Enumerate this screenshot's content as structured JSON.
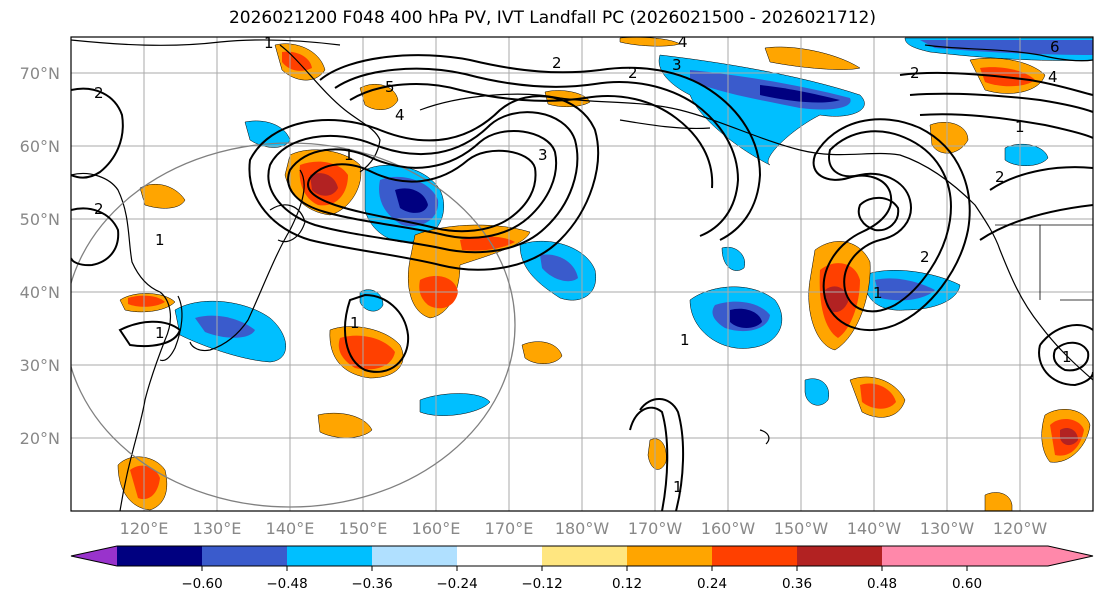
{
  "title": "2026021200 F048 400 hPa PV, IVT Landfall PC (2026021500 - 2026021712)",
  "map": {
    "projection": "cylindrical",
    "lon_range": [
      112,
      252
    ],
    "lat_range": [
      10,
      75
    ],
    "lat_labels": [
      "70°N",
      "60°N",
      "50°N",
      "40°N",
      "30°N",
      "20°N"
    ],
    "lon_labels": [
      "120°E",
      "130°E",
      "140°E",
      "150°E",
      "160°E",
      "170°E",
      "180°W",
      "170°W",
      "160°W",
      "150°W",
      "140°W",
      "130°W",
      "120°W"
    ],
    "contour_labels": [
      "1",
      "2",
      "3",
      "4",
      "5",
      "6"
    ],
    "contour_color": "#000000",
    "grid_color": "#aaaaaa",
    "circle_color": "#808080"
  },
  "colorbar": {
    "ticks": [
      "−0.60",
      "−0.48",
      "−0.36",
      "−0.24",
      "−0.12",
      "0.12",
      "0.24",
      "0.36",
      "0.48",
      "0.60"
    ],
    "colors": [
      "#9933cc",
      "#000080",
      "#3a5bcc",
      "#00bfff",
      "#b0e0ff",
      "#ffffff",
      "#ffe680",
      "#ffa500",
      "#ff4000",
      "#b22222",
      "#ff88aa"
    ]
  }
}
